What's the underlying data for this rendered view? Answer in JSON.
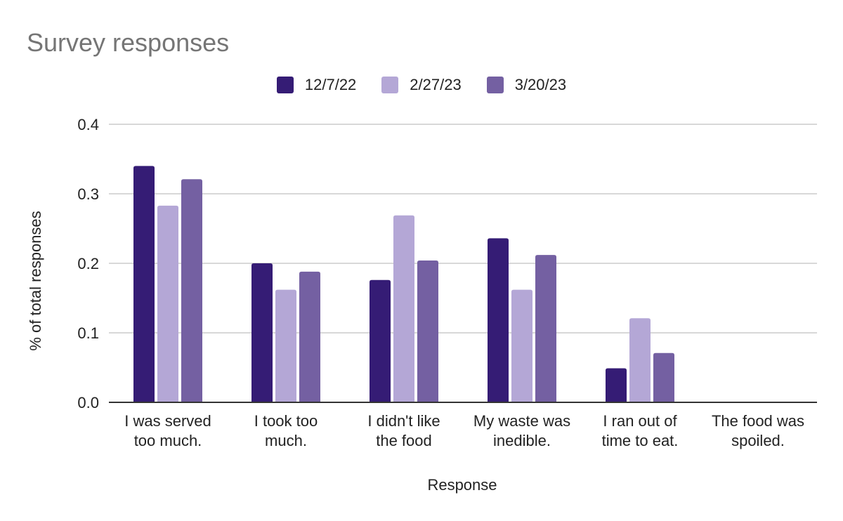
{
  "chart_data": {
    "type": "bar",
    "title": "Survey responses",
    "xlabel": "Response",
    "ylabel": "% of total responses",
    "ylim": [
      0,
      0.4
    ],
    "yticks": [
      "0.0",
      "0.1",
      "0.2",
      "0.3",
      "0.4"
    ],
    "grid": true,
    "legend_position": "top",
    "categories": [
      [
        "I was served",
        "too much."
      ],
      [
        "I took too",
        "much."
      ],
      [
        "I didn't like",
        "the food"
      ],
      [
        "My waste was",
        "inedible."
      ],
      [
        "I ran out of",
        "time to eat."
      ],
      [
        "The food was",
        "spoiled."
      ]
    ],
    "series": [
      {
        "name": "12/7/22",
        "color": "#351c75",
        "values": [
          0.34,
          0.2,
          0.176,
          0.236,
          0.049,
          0
        ]
      },
      {
        "name": "2/27/23",
        "color": "#b4a7d6",
        "values": [
          0.283,
          0.162,
          0.269,
          0.162,
          0.121,
          0
        ]
      },
      {
        "name": "3/20/23",
        "color": "#7460a2",
        "values": [
          0.321,
          0.188,
          0.204,
          0.212,
          0.071,
          0
        ]
      }
    ]
  }
}
